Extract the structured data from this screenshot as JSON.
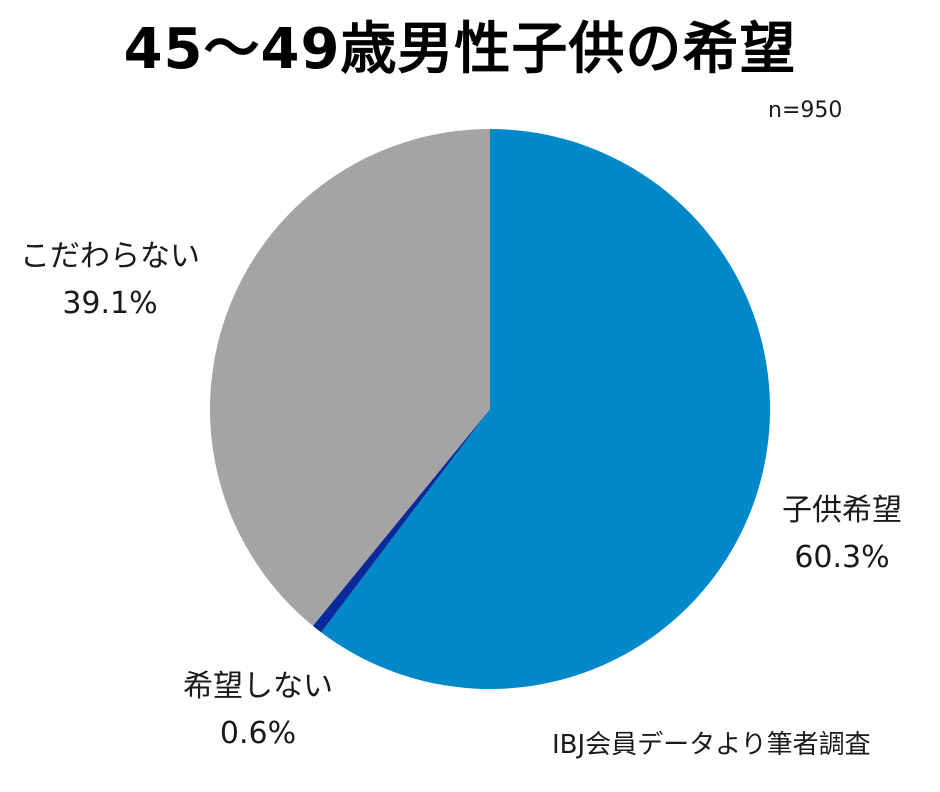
{
  "chart_data": {
    "type": "pie",
    "title": "45～49歳男性子供の希望",
    "subtitle": "n=950",
    "source_note": "IBJ会員データより筆者調査",
    "slices": [
      {
        "label": "子供希望",
        "value": 60.3,
        "value_label": "60.3%",
        "color": "#0088c8"
      },
      {
        "label": "希望しない",
        "value": 0.6,
        "value_label": "0.6%",
        "color": "#0a2a9c"
      },
      {
        "label": "こだわらない",
        "value": 39.1,
        "value_label": "39.1%",
        "color": "#a4a4a4"
      }
    ],
    "start_angle_deg": 0,
    "direction": "clockwise"
  }
}
